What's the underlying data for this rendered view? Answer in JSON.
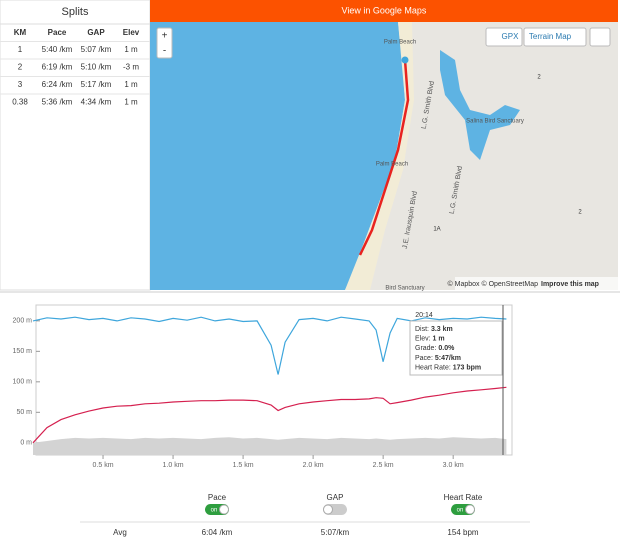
{
  "splits": {
    "title": "Splits",
    "columns": [
      "KM",
      "Pace",
      "GAP",
      "Elev"
    ],
    "rows": [
      [
        "1",
        "5:40 /km",
        "5:07 /km",
        "1 m"
      ],
      [
        "2",
        "6:19 /km",
        "5:10 /km",
        "-3 m"
      ],
      [
        "3",
        "6:24 /km",
        "5:17 /km",
        "1 m"
      ],
      [
        "0.38",
        "5:36 /km",
        "4:34 /km",
        "1 m"
      ]
    ]
  },
  "map": {
    "button": "View in Google Maps",
    "zoom_in": "+",
    "zoom_out": "-",
    "gpx": "GPX",
    "style": "Terrain Map",
    "labels": [
      "Palm Beach",
      "L.G. Smith Blvd",
      "Salina Bird Sanctuary",
      "L.G. Smith Blvd",
      "Palm Beach",
      "J.E. Irausquin Blvd",
      "1A",
      "2",
      "2",
      "Bird Sanctuary"
    ],
    "attribution": "© Mapbox © OpenStreetMap",
    "improve": "Improve this map"
  },
  "chart_data": {
    "type": "line",
    "x": [
      0,
      0.1,
      0.2,
      0.3,
      0.4,
      0.5,
      0.6,
      0.7,
      0.8,
      0.9,
      1.0,
      1.1,
      1.2,
      1.3,
      1.4,
      1.5,
      1.6,
      1.7,
      1.75,
      1.8,
      1.9,
      2.0,
      2.1,
      2.2,
      2.3,
      2.4,
      2.45,
      2.5,
      2.55,
      2.6,
      2.7,
      2.8,
      2.9,
      3.0,
      3.1,
      3.2,
      3.3,
      3.38
    ],
    "series": [
      {
        "color": "#3ea6dc",
        "values": [
          200,
          205,
          203,
          206,
          202,
          204,
          200,
          205,
          203,
          199,
          204,
          201,
          206,
          200,
          203,
          199,
          200,
          160,
          112,
          165,
          202,
          204,
          200,
          206,
          203,
          200,
          185,
          133,
          180,
          204,
          200,
          205,
          202,
          204,
          203,
          206,
          204,
          203
        ]
      },
      {
        "color": "#d5204f",
        "values": [
          0,
          25,
          38,
          46,
          52,
          57,
          60,
          61,
          64,
          65,
          67,
          68,
          69,
          69,
          70,
          70,
          69,
          62,
          53,
          58,
          64,
          67,
          69,
          71,
          71,
          72,
          74,
          73,
          64,
          66,
          70,
          75,
          78,
          82,
          85,
          87,
          89,
          91
        ]
      },
      {
        "color": "#d3d3d3",
        "fill": true,
        "values": [
          0,
          3,
          6,
          8,
          7,
          8,
          7,
          6,
          8,
          7,
          8,
          7,
          6,
          8,
          9,
          7,
          8,
          6,
          5,
          6,
          8,
          7,
          6,
          8,
          7,
          6,
          7,
          6,
          5,
          6,
          7,
          8,
          7,
          9,
          8,
          7,
          8,
          6
        ]
      }
    ],
    "xlim": [
      0,
      3.42
    ],
    "ylim": [
      -20,
      226
    ],
    "xticks": [
      {
        "value": 0.5,
        "label": "0.5 km"
      },
      {
        "value": 1.0,
        "label": "1.0 km"
      },
      {
        "value": 1.5,
        "label": "1.5 km"
      },
      {
        "value": 2.0,
        "label": "2.0 km"
      },
      {
        "value": 2.5,
        "label": "2.5 km"
      },
      {
        "value": 3.0,
        "label": "3.0 km"
      }
    ],
    "yticks": [
      {
        "value": 0,
        "label": "0 m"
      },
      {
        "value": 50,
        "label": "50 m"
      },
      {
        "value": 100,
        "label": "100 m"
      },
      {
        "value": 150,
        "label": "150 m"
      },
      {
        "value": 200,
        "label": "200 m"
      }
    ]
  },
  "tooltip": {
    "time": "20:14",
    "rows": [
      [
        "Dist:",
        "3.3 km"
      ],
      [
        "Elev:",
        "1 m"
      ],
      [
        "Grade:",
        "0.0%"
      ],
      [
        "Pace:",
        "5:47/km"
      ],
      [
        "Heart Rate:",
        "173 bpm"
      ]
    ]
  },
  "toggles": [
    {
      "label": "Pace",
      "switch": "on"
    },
    {
      "label": "GAP"
    },
    {
      "label": "Heart Rate",
      "switch": "on"
    }
  ],
  "avg": [
    "Avg",
    "6:04 /km",
    "5:07/km",
    "154 bpm"
  ]
}
